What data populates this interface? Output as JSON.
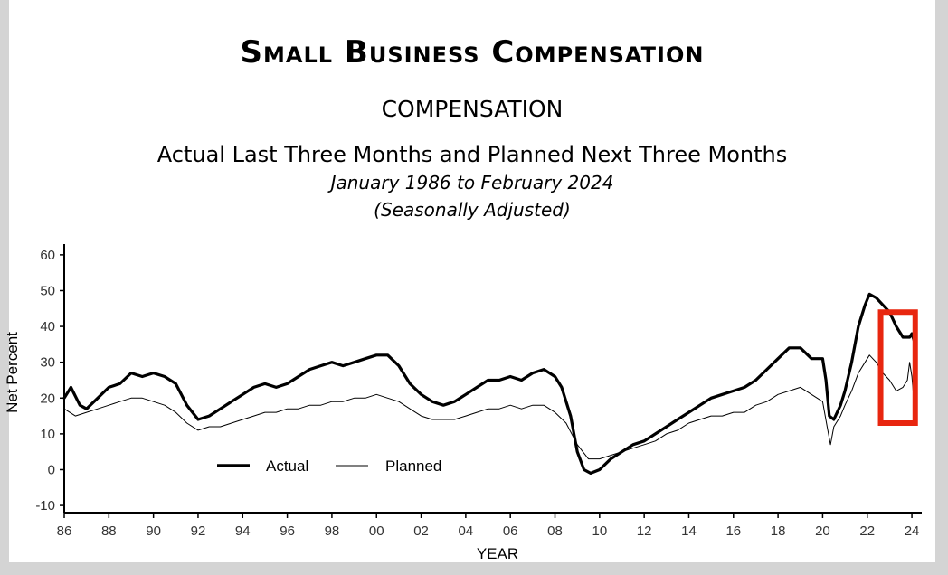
{
  "header": {
    "title": "Small Business Compensation",
    "subtitle": "COMPENSATION",
    "description": "Actual Last Three Months and Planned Next Three Months",
    "date_range": "January 1986 to February 2024",
    "adjustment": "(Seasonally Adjusted)"
  },
  "highlight": {
    "color": "#e8260f",
    "x_range": [
      2022.6,
      2024.15
    ],
    "y_range": [
      13,
      44
    ]
  },
  "chart_data": {
    "type": "line",
    "title": "Actual Last Three Months and Planned Next Three Months",
    "xlabel": "YEAR",
    "ylabel": "Net Percent",
    "xlim": [
      1986,
      2024.2
    ],
    "ylim": [
      -12,
      63
    ],
    "x_ticks": [
      1986,
      1988,
      1990,
      1992,
      1994,
      1996,
      1998,
      2000,
      2002,
      2004,
      2006,
      2008,
      2010,
      2012,
      2014,
      2016,
      2018,
      2020,
      2022,
      2024
    ],
    "x_tick_labels": [
      "86",
      "88",
      "90",
      "92",
      "94",
      "96",
      "98",
      "00",
      "02",
      "04",
      "06",
      "08",
      "10",
      "12",
      "14",
      "16",
      "18",
      "20",
      "22",
      "24"
    ],
    "y_ticks": [
      -10,
      0,
      10,
      20,
      30,
      40,
      50,
      60
    ],
    "y_tick_labels": [
      "-10",
      "0",
      "10",
      "20",
      "30",
      "40",
      "50",
      "60"
    ],
    "legend": {
      "position": "bottom-left",
      "entries": [
        "Actual",
        "Planned"
      ]
    },
    "series": [
      {
        "name": "Actual",
        "style": "thick",
        "points": [
          [
            1986.0,
            20
          ],
          [
            1986.3,
            23
          ],
          [
            1986.7,
            18
          ],
          [
            1987.0,
            17
          ],
          [
            1987.5,
            20
          ],
          [
            1988.0,
            23
          ],
          [
            1988.5,
            24
          ],
          [
            1989.0,
            27
          ],
          [
            1989.5,
            26
          ],
          [
            1990.0,
            27
          ],
          [
            1990.5,
            26
          ],
          [
            1991.0,
            24
          ],
          [
            1991.5,
            18
          ],
          [
            1992.0,
            14
          ],
          [
            1992.5,
            15
          ],
          [
            1993.0,
            17
          ],
          [
            1993.5,
            19
          ],
          [
            1994.0,
            21
          ],
          [
            1994.5,
            23
          ],
          [
            1995.0,
            24
          ],
          [
            1995.5,
            23
          ],
          [
            1996.0,
            24
          ],
          [
            1996.5,
            26
          ],
          [
            1997.0,
            28
          ],
          [
            1997.5,
            29
          ],
          [
            1998.0,
            30
          ],
          [
            1998.5,
            29
          ],
          [
            1999.0,
            30
          ],
          [
            1999.5,
            31
          ],
          [
            2000.0,
            32
          ],
          [
            2000.5,
            32
          ],
          [
            2001.0,
            29
          ],
          [
            2001.5,
            24
          ],
          [
            2002.0,
            21
          ],
          [
            2002.5,
            19
          ],
          [
            2003.0,
            18
          ],
          [
            2003.5,
            19
          ],
          [
            2004.0,
            21
          ],
          [
            2004.5,
            23
          ],
          [
            2005.0,
            25
          ],
          [
            2005.5,
            25
          ],
          [
            2006.0,
            26
          ],
          [
            2006.5,
            25
          ],
          [
            2007.0,
            27
          ],
          [
            2007.5,
            28
          ],
          [
            2008.0,
            26
          ],
          [
            2008.3,
            23
          ],
          [
            2008.7,
            15
          ],
          [
            2009.0,
            5
          ],
          [
            2009.3,
            0
          ],
          [
            2009.6,
            -1
          ],
          [
            2010.0,
            0
          ],
          [
            2010.5,
            3
          ],
          [
            2011.0,
            5
          ],
          [
            2011.5,
            7
          ],
          [
            2012.0,
            8
          ],
          [
            2012.5,
            10
          ],
          [
            2013.0,
            12
          ],
          [
            2013.5,
            14
          ],
          [
            2014.0,
            16
          ],
          [
            2014.5,
            18
          ],
          [
            2015.0,
            20
          ],
          [
            2015.5,
            21
          ],
          [
            2016.0,
            22
          ],
          [
            2016.5,
            23
          ],
          [
            2017.0,
            25
          ],
          [
            2017.5,
            28
          ],
          [
            2018.0,
            31
          ],
          [
            2018.5,
            34
          ],
          [
            2019.0,
            34
          ],
          [
            2019.5,
            31
          ],
          [
            2020.0,
            31
          ],
          [
            2020.15,
            25
          ],
          [
            2020.3,
            15
          ],
          [
            2020.5,
            14
          ],
          [
            2020.8,
            18
          ],
          [
            2021.0,
            22
          ],
          [
            2021.3,
            30
          ],
          [
            2021.6,
            40
          ],
          [
            2021.9,
            46
          ],
          [
            2022.1,
            49
          ],
          [
            2022.4,
            48
          ],
          [
            2022.7,
            46
          ],
          [
            2023.0,
            44
          ],
          [
            2023.3,
            40
          ],
          [
            2023.6,
            37
          ],
          [
            2023.9,
            37
          ],
          [
            2024.0,
            38
          ],
          [
            2024.1,
            36
          ]
        ]
      },
      {
        "name": "Planned",
        "style": "thin",
        "points": [
          [
            1986.0,
            17
          ],
          [
            1986.5,
            15
          ],
          [
            1987.0,
            16
          ],
          [
            1987.5,
            17
          ],
          [
            1988.0,
            18
          ],
          [
            1988.5,
            19
          ],
          [
            1989.0,
            20
          ],
          [
            1989.5,
            20
          ],
          [
            1990.0,
            19
          ],
          [
            1990.5,
            18
          ],
          [
            1991.0,
            16
          ],
          [
            1991.5,
            13
          ],
          [
            1992.0,
            11
          ],
          [
            1992.5,
            12
          ],
          [
            1993.0,
            12
          ],
          [
            1993.5,
            13
          ],
          [
            1994.0,
            14
          ],
          [
            1994.5,
            15
          ],
          [
            1995.0,
            16
          ],
          [
            1995.5,
            16
          ],
          [
            1996.0,
            17
          ],
          [
            1996.5,
            17
          ],
          [
            1997.0,
            18
          ],
          [
            1997.5,
            18
          ],
          [
            1998.0,
            19
          ],
          [
            1998.5,
            19
          ],
          [
            1999.0,
            20
          ],
          [
            1999.5,
            20
          ],
          [
            2000.0,
            21
          ],
          [
            2000.5,
            20
          ],
          [
            2001.0,
            19
          ],
          [
            2001.5,
            17
          ],
          [
            2002.0,
            15
          ],
          [
            2002.5,
            14
          ],
          [
            2003.0,
            14
          ],
          [
            2003.5,
            14
          ],
          [
            2004.0,
            15
          ],
          [
            2004.5,
            16
          ],
          [
            2005.0,
            17
          ],
          [
            2005.5,
            17
          ],
          [
            2006.0,
            18
          ],
          [
            2006.5,
            17
          ],
          [
            2007.0,
            18
          ],
          [
            2007.5,
            18
          ],
          [
            2008.0,
            16
          ],
          [
            2008.5,
            13
          ],
          [
            2009.0,
            7
          ],
          [
            2009.5,
            3
          ],
          [
            2010.0,
            3
          ],
          [
            2010.5,
            4
          ],
          [
            2011.0,
            5
          ],
          [
            2011.5,
            6
          ],
          [
            2012.0,
            7
          ],
          [
            2012.5,
            8
          ],
          [
            2013.0,
            10
          ],
          [
            2013.5,
            11
          ],
          [
            2014.0,
            13
          ],
          [
            2014.5,
            14
          ],
          [
            2015.0,
            15
          ],
          [
            2015.5,
            15
          ],
          [
            2016.0,
            16
          ],
          [
            2016.5,
            16
          ],
          [
            2017.0,
            18
          ],
          [
            2017.5,
            19
          ],
          [
            2018.0,
            21
          ],
          [
            2018.5,
            22
          ],
          [
            2019.0,
            23
          ],
          [
            2019.5,
            21
          ],
          [
            2020.0,
            19
          ],
          [
            2020.2,
            12
          ],
          [
            2020.35,
            7
          ],
          [
            2020.5,
            12
          ],
          [
            2020.8,
            15
          ],
          [
            2021.0,
            18
          ],
          [
            2021.3,
            22
          ],
          [
            2021.6,
            27
          ],
          [
            2021.9,
            30
          ],
          [
            2022.1,
            32
          ],
          [
            2022.4,
            30
          ],
          [
            2022.7,
            27
          ],
          [
            2023.0,
            25
          ],
          [
            2023.3,
            22
          ],
          [
            2023.6,
            23
          ],
          [
            2023.8,
            25
          ],
          [
            2023.9,
            30
          ],
          [
            2024.0,
            26
          ],
          [
            2024.1,
            19
          ]
        ]
      }
    ]
  }
}
